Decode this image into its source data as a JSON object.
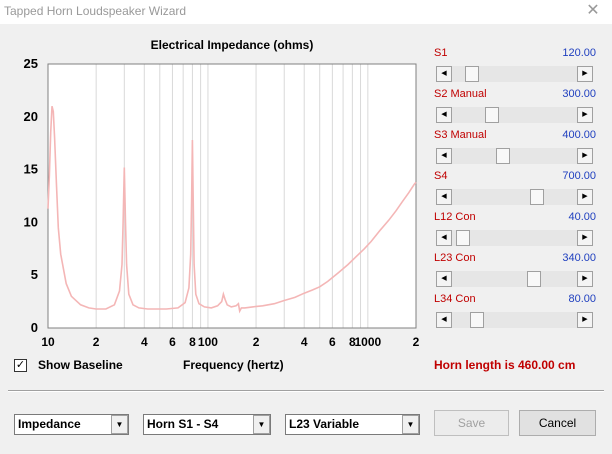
{
  "window": {
    "title": "Tapped Horn Loudspeaker Wizard"
  },
  "chart_data": {
    "type": "line",
    "title": "Electrical Impedance (ohms)",
    "xlabel": "Frequency (hertz)",
    "ylabel": "",
    "xscale": "log",
    "xlim": [
      10,
      2000
    ],
    "ylim": [
      0,
      25
    ],
    "yticks": [
      0,
      5,
      10,
      15,
      20,
      25
    ],
    "xtick_labels": [
      {
        "v": 10,
        "t": "10"
      },
      {
        "v": 20,
        "t": "2"
      },
      {
        "v": 40,
        "t": "4"
      },
      {
        "v": 60,
        "t": "6"
      },
      {
        "v": 80,
        "t": "8"
      },
      {
        "v": 100,
        "t": "100"
      },
      {
        "v": 200,
        "t": "2"
      },
      {
        "v": 400,
        "t": "4"
      },
      {
        "v": 600,
        "t": "6"
      },
      {
        "v": 800,
        "t": "8"
      },
      {
        "v": 1000,
        "t": "1000"
      },
      {
        "v": 2000,
        "t": "2"
      }
    ],
    "grid": true,
    "series": [
      {
        "name": "Impedance",
        "color": "#f4b6b6",
        "x": [
          10,
          10.2,
          10.4,
          10.6,
          10.8,
          11,
          11.3,
          11.6,
          12,
          13,
          14,
          16,
          18,
          20,
          23,
          26,
          28,
          29,
          29.5,
          30,
          30.5,
          31,
          32,
          34,
          37,
          42,
          48,
          55,
          65,
          72,
          76,
          78,
          79,
          80,
          81,
          82,
          84,
          88,
          95,
          105,
          115,
          122,
          125,
          128,
          132,
          140,
          150,
          155,
          158,
          162,
          170,
          190,
          220,
          260,
          300,
          350,
          400,
          450,
          500,
          560,
          650,
          750,
          850,
          950,
          1050,
          1200,
          1350,
          1500,
          1650,
          1800,
          1950,
          2000
        ],
        "y": [
          11.3,
          14.5,
          18.5,
          21,
          20.5,
          18,
          13.5,
          9.5,
          7,
          4.2,
          3,
          2.2,
          1.9,
          1.8,
          1.8,
          2.2,
          3.5,
          6,
          10,
          15.2,
          10,
          6,
          3.2,
          2.2,
          1.9,
          1.8,
          1.8,
          1.8,
          1.9,
          2.4,
          3.8,
          7,
          12,
          17.8,
          11.5,
          6,
          3.2,
          2.3,
          2,
          1.9,
          2.1,
          2.5,
          3.2,
          2.7,
          2.2,
          2,
          2.1,
          2.3,
          1.6,
          1.9,
          1.9,
          2,
          2.1,
          2.3,
          2.6,
          2.9,
          3.3,
          3.6,
          3.9,
          4.4,
          5.2,
          6,
          6.8,
          7.5,
          8.2,
          9.3,
          10.2,
          11.1,
          12,
          12.8,
          13.6,
          13.8
        ]
      }
    ]
  },
  "sliders": [
    {
      "label": "S1",
      "value": "120.00",
      "position": 0.12
    },
    {
      "label": "S2  Manual",
      "value": "300.00",
      "position": 0.3
    },
    {
      "label": "S3  Manual",
      "value": "400.00",
      "position": 0.4
    },
    {
      "label": "S4",
      "value": "700.00",
      "position": 0.7
    },
    {
      "label": "L12  Con",
      "value": "40.00",
      "position": 0.04
    },
    {
      "label": "L23  Con",
      "value": "340.00",
      "position": 0.68
    },
    {
      "label": "L34  Con",
      "value": "80.00",
      "position": 0.16
    }
  ],
  "baseline": {
    "label": "Show Baseline",
    "checked_glyph": "✓"
  },
  "horn_length": "Horn length is 460.00 cm",
  "combos": [
    {
      "value": "Impedance"
    },
    {
      "value": "Horn S1 - S4"
    },
    {
      "value": "L23 Variable"
    }
  ],
  "buttons": {
    "save": "Save",
    "cancel": "Cancel"
  }
}
